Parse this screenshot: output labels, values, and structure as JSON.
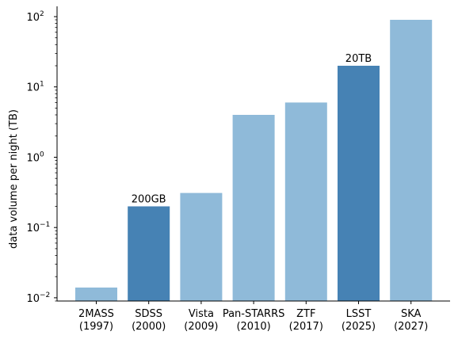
{
  "chart_data": {
    "type": "bar",
    "title": "",
    "xlabel": "",
    "ylabel": "data volume per night (TB)",
    "yscale": "log",
    "ylim": [
      0.009,
      140
    ],
    "yticks": [
      {
        "value": 0.01,
        "base": "10",
        "exp": "−2"
      },
      {
        "value": 0.1,
        "base": "10",
        "exp": "−1"
      },
      {
        "value": 1,
        "base": "10",
        "exp": "0"
      },
      {
        "value": 10,
        "base": "10",
        "exp": "1"
      },
      {
        "value": 100,
        "base": "10",
        "exp": "2"
      }
    ],
    "grid": false,
    "categories": [
      {
        "name": "2MASS",
        "year": "(1997)"
      },
      {
        "name": "SDSS",
        "year": "(2000)"
      },
      {
        "name": "Vista",
        "year": "(2009)"
      },
      {
        "name": "Pan-STARRS",
        "year": "(2010)"
      },
      {
        "name": "ZTF",
        "year": "(2017)"
      },
      {
        "name": "LSST",
        "year": "(2025)"
      },
      {
        "name": "SKA",
        "year": "(2027)"
      }
    ],
    "values": [
      0.014,
      0.2,
      0.31,
      4.0,
      6.0,
      20,
      90
    ],
    "highlighted": [
      false,
      true,
      false,
      false,
      false,
      true,
      false
    ],
    "bar_labels": [
      "",
      "200GB",
      "",
      "",
      "",
      "20TB",
      ""
    ],
    "colors": {
      "bar": "#8fbad9",
      "highlight": "#4682b4",
      "axis": "#000000"
    }
  }
}
